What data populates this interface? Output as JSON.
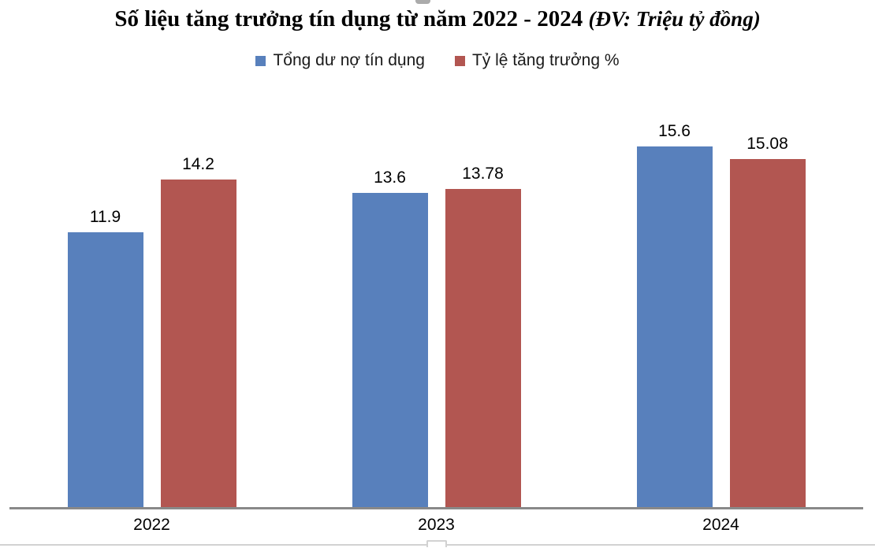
{
  "title": {
    "text": "Số liệu tăng trưởng tín dụng từ năm 2022 - 2024",
    "unit_note": "(ĐV: Triệu tỷ đồng)"
  },
  "legend": {
    "items": [
      {
        "label": "Tổng dư nợ tín dụng",
        "color": "#5880BC"
      },
      {
        "label": "Tỷ lệ tăng trưởng %",
        "color": "#B25651"
      }
    ]
  },
  "colors": {
    "series1": "#5880BC",
    "series2": "#B25651",
    "axis": "#898989"
  },
  "chart_data": {
    "type": "bar",
    "categories": [
      "2022",
      "2023",
      "2024"
    ],
    "series": [
      {
        "name": "Tổng dư nợ tín dụng",
        "color": "#5880BC",
        "values": [
          11.9,
          13.6,
          15.6
        ],
        "labels": [
          "11.9",
          "13.6",
          "15.6"
        ]
      },
      {
        "name": "Tỷ lệ tăng trưởng %",
        "color": "#B25651",
        "values": [
          14.2,
          13.78,
          15.08
        ],
        "labels": [
          "14.2",
          "13.78",
          "15.08"
        ]
      }
    ],
    "title": "Số liệu tăng trưởng tín dụng từ năm 2022 - 2024 (ĐV: Triệu tỷ đồng)",
    "xlabel": "",
    "ylabel": "",
    "ylim": [
      0,
      18
    ],
    "grid": false,
    "legend_position": "top",
    "data_labels": true
  }
}
